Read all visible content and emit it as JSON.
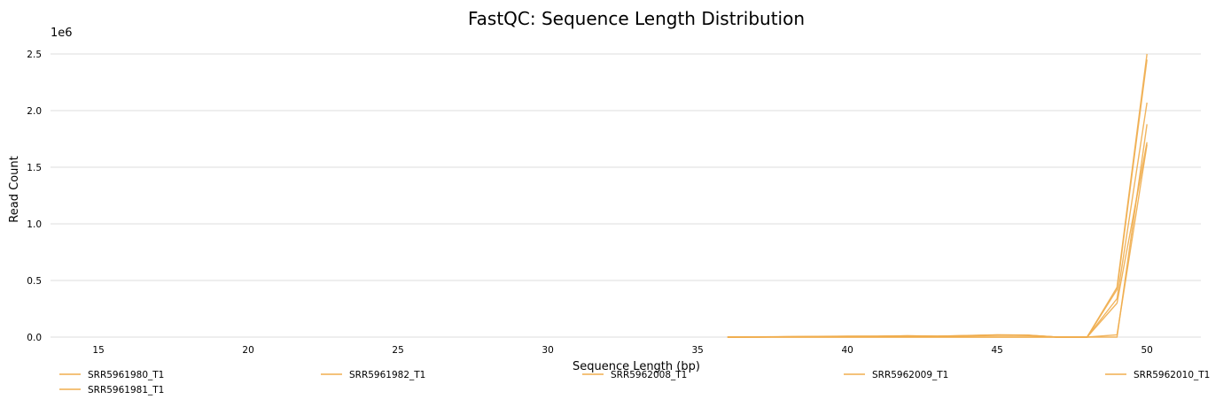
{
  "chart_data": {
    "type": "line",
    "title": "FastQC: Sequence Length Distribution",
    "xlabel": "Sequence Length (bp)",
    "ylabel": "Read Count",
    "y_multiplier_label": "1e6",
    "xlim": [
      13.4,
      51.8
    ],
    "ylim": [
      0,
      2.5
    ],
    "x_ticks": [
      "15",
      "20",
      "25",
      "30",
      "35",
      "40",
      "45",
      "50"
    ],
    "y_ticks": [
      "0.0",
      "0.5",
      "1.0",
      "1.5",
      "2.0",
      "2.5"
    ],
    "grid": "horizontal",
    "legend_position": "bottom",
    "line_color": "#f0ad4e",
    "x": [
      36,
      37,
      38,
      39,
      40,
      41,
      42,
      43,
      44,
      45,
      46,
      47,
      48,
      49,
      50
    ],
    "series": [
      {
        "name": "SRR5961980_T1",
        "values": [
          0.0,
          0.002,
          0.004,
          0.006,
          0.008,
          0.008,
          0.012,
          0.008,
          0.014,
          0.02,
          0.018,
          0.0,
          0.0,
          0.44,
          2.5
        ]
      },
      {
        "name": "SRR5961981_T1",
        "values": [
          0.0,
          0.001,
          0.003,
          0.005,
          0.006,
          0.007,
          0.01,
          0.007,
          0.012,
          0.018,
          0.016,
          0.0,
          0.0,
          0.42,
          2.45
        ]
      },
      {
        "name": "SRR5961982_T1",
        "values": [
          0.0,
          0.001,
          0.003,
          0.005,
          0.007,
          0.007,
          0.011,
          0.008,
          0.013,
          0.019,
          0.017,
          0.0,
          0.0,
          0.34,
          2.07
        ]
      },
      {
        "name": "SRR5962008_T1",
        "values": [
          0.0,
          0.0,
          0.0,
          0.0,
          0.0,
          0.0,
          0.0,
          0.0,
          0.0,
          0.0,
          0.0,
          0.0,
          0.0,
          0.0,
          1.88
        ]
      },
      {
        "name": "SRR5962009_T1",
        "values": [
          0.0,
          0.0,
          0.0,
          0.0,
          0.0,
          0.0,
          0.0,
          0.0,
          0.0,
          0.0,
          0.0,
          0.0,
          0.0,
          0.02,
          1.7
        ]
      },
      {
        "name": "SRR5962010_T1",
        "values": [
          0.0,
          0.001,
          0.002,
          0.004,
          0.006,
          0.006,
          0.009,
          0.007,
          0.01,
          0.016,
          0.014,
          0.0,
          0.0,
          0.3,
          1.72
        ]
      }
    ],
    "legend_rows": [
      [
        "SRR5961980_T1",
        "SRR5961982_T1",
        "SRR5962008_T1",
        "SRR5962009_T1",
        "SRR5962010_T1"
      ],
      [
        "SRR5961981_T1"
      ]
    ]
  }
}
